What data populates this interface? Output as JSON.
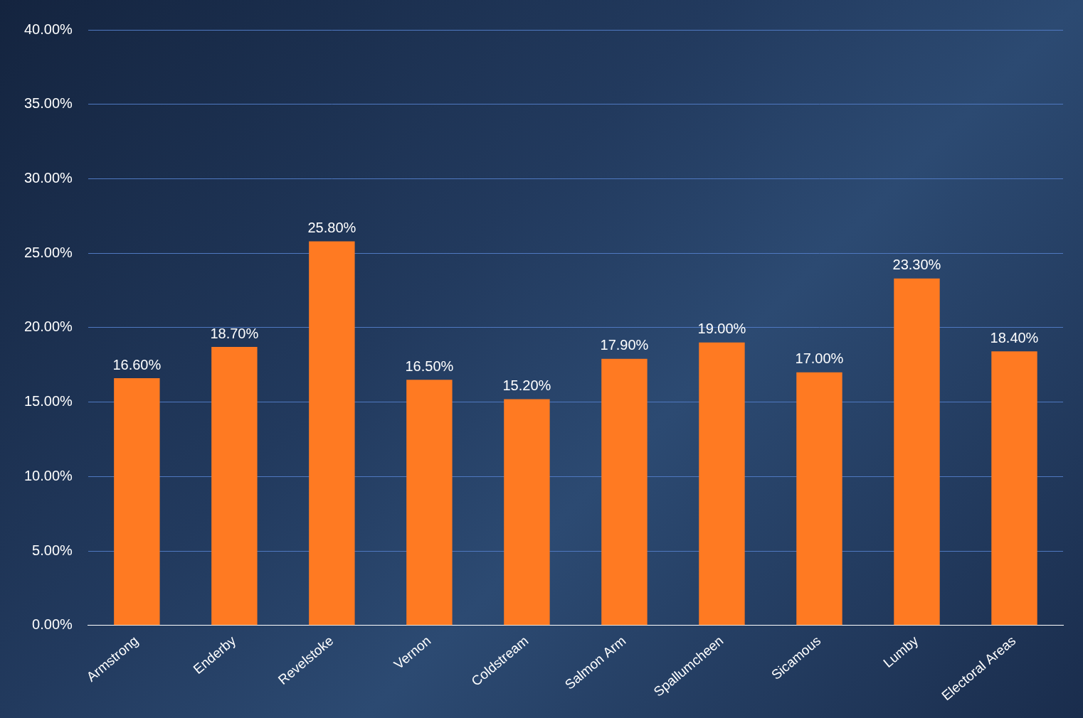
{
  "chart_data": {
    "type": "bar",
    "categories": [
      "Armstrong",
      "Enderby",
      "Revelstoke",
      "Vernon",
      "Coldstream",
      "Salmon Arm",
      "Spallumcheen",
      "Sicamous",
      "Lumby",
      "Electoral Areas"
    ],
    "values": [
      16.6,
      18.7,
      25.8,
      16.5,
      15.2,
      17.9,
      19.0,
      17.0,
      23.3,
      18.4
    ],
    "value_labels": [
      "16.60%",
      "18.70%",
      "25.80%",
      "16.50%",
      "15.20%",
      "17.90%",
      "19.00%",
      "17.00%",
      "23.30%",
      "18.40%"
    ],
    "color": "#ff7a22",
    "ylim": [
      0,
      40
    ],
    "yticks": [
      {
        "value": 0,
        "label": "0.00%"
      },
      {
        "value": 5,
        "label": "5.00%"
      },
      {
        "value": 10,
        "label": "10.00%"
      },
      {
        "value": 15,
        "label": "15.00%"
      },
      {
        "value": 20,
        "label": "20.00%"
      },
      {
        "value": 25,
        "label": "25.00%"
      },
      {
        "value": 30,
        "label": "30.00%"
      },
      {
        "value": 35,
        "label": "35.00%"
      },
      {
        "value": 40,
        "label": "40.00%"
      }
    ],
    "grid": true,
    "data_labels": true
  }
}
